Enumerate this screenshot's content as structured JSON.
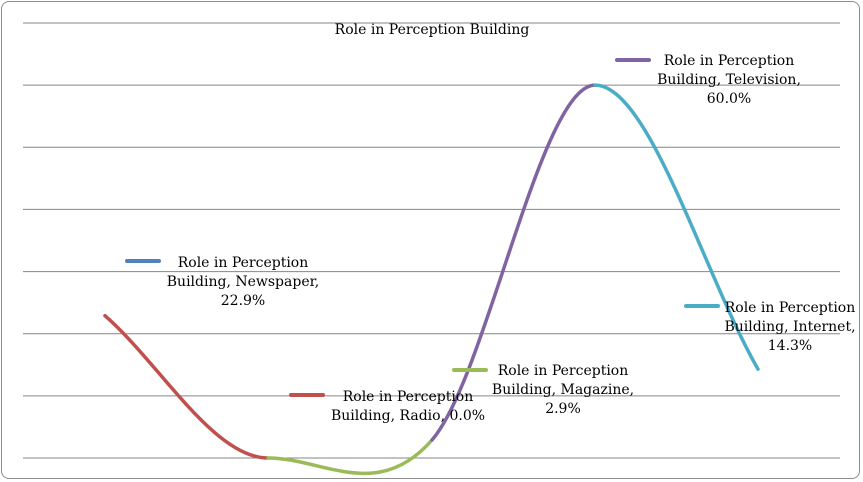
{
  "chart_data": {
    "type": "line",
    "title": "Role in Perception Building",
    "smooth": true,
    "grid": true,
    "ylim": [
      0,
      70
    ],
    "categories": [
      "Newspaper",
      "Radio",
      "Magazine",
      "Television",
      "Internet"
    ],
    "values": [
      22.9,
      0.0,
      2.9,
      60.0,
      14.3
    ],
    "segment_colors": [
      "#c0504d",
      "#9bbb59",
      "#8064a2",
      "#4bacc6"
    ],
    "data_labels": [
      {
        "lines": [
          "Role in Perception",
          "Building, Newspaper,",
          "22.9%"
        ],
        "color": "#4f81bd"
      },
      {
        "lines": [
          "Role in Perception",
          "Building, Radio, 0.0%"
        ],
        "color": "#c0504d"
      },
      {
        "lines": [
          "Role in Perception",
          "Building, Magazine,",
          "2.9%"
        ],
        "color": "#9bbb59"
      },
      {
        "lines": [
          "Role in Perception",
          "Building, Television,",
          "60.0%"
        ],
        "color": "#8064a2"
      },
      {
        "lines": [
          "Role in Perception",
          "Building, Internet,",
          "14.3%"
        ],
        "color": "#4bacc6"
      }
    ]
  }
}
